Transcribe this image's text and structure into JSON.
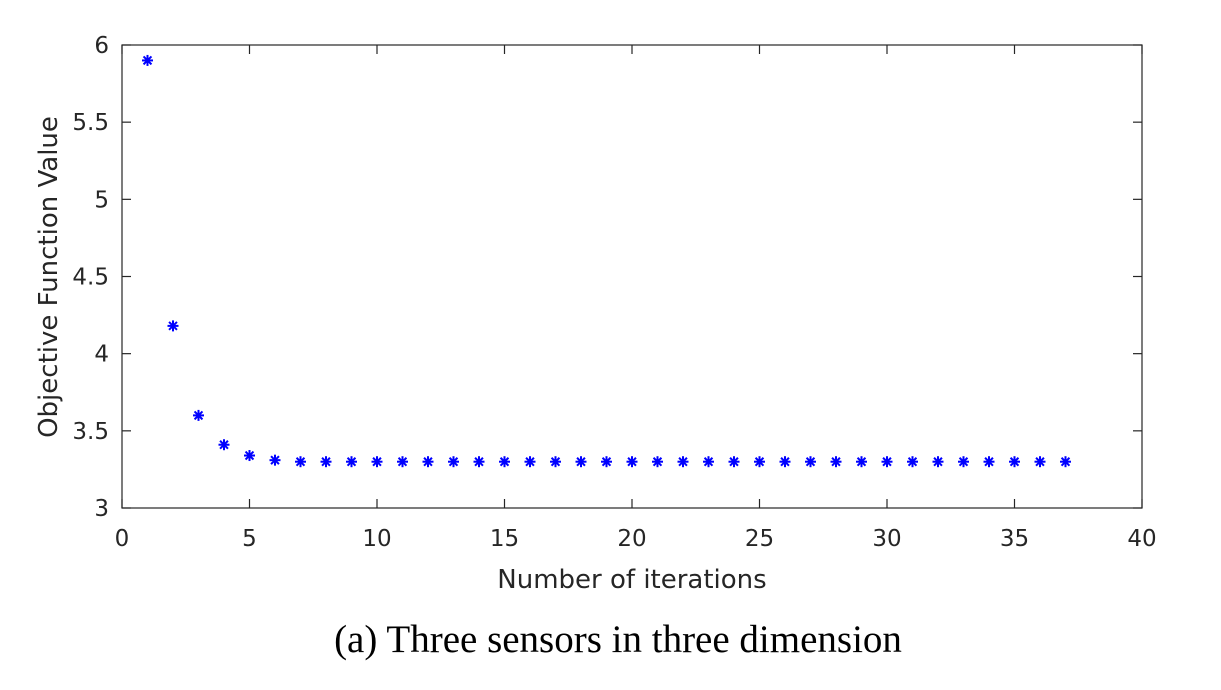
{
  "caption": "(a) Three sensors in three dimension",
  "colors": {
    "marker": "#0000ff",
    "axis": "#262626"
  },
  "chart_data": {
    "type": "scatter",
    "marker": "asterisk",
    "xlabel": "Number of iterations",
    "ylabel": "Objective Function Value",
    "xlim": [
      0,
      40
    ],
    "ylim": [
      3,
      6
    ],
    "xticks": [
      0,
      5,
      10,
      15,
      20,
      25,
      30,
      35,
      40
    ],
    "yticks": [
      3,
      3.5,
      4,
      4.5,
      5,
      5.5,
      6
    ],
    "xtick_labels": [
      "0",
      "5",
      "10",
      "15",
      "20",
      "25",
      "30",
      "35",
      "40"
    ],
    "ytick_labels": [
      "3",
      "3.5",
      "4",
      "4.5",
      "5",
      "5.5",
      "6"
    ],
    "grid": false,
    "series": [
      {
        "x": [
          1,
          2,
          3,
          4,
          5,
          6,
          7,
          8,
          9,
          10,
          11,
          12,
          13,
          14,
          15,
          16,
          17,
          18,
          19,
          20,
          21,
          22,
          23,
          24,
          25,
          26,
          27,
          28,
          29,
          30,
          31,
          32,
          33,
          34,
          35,
          36,
          37
        ],
        "y": [
          5.9,
          4.18,
          3.6,
          3.41,
          3.34,
          3.31,
          3.3,
          3.3,
          3.3,
          3.3,
          3.3,
          3.3,
          3.3,
          3.3,
          3.3,
          3.3,
          3.3,
          3.3,
          3.3,
          3.3,
          3.3,
          3.3,
          3.3,
          3.3,
          3.3,
          3.3,
          3.3,
          3.3,
          3.3,
          3.3,
          3.3,
          3.3,
          3.3,
          3.3,
          3.3,
          3.3,
          3.3
        ]
      }
    ]
  }
}
